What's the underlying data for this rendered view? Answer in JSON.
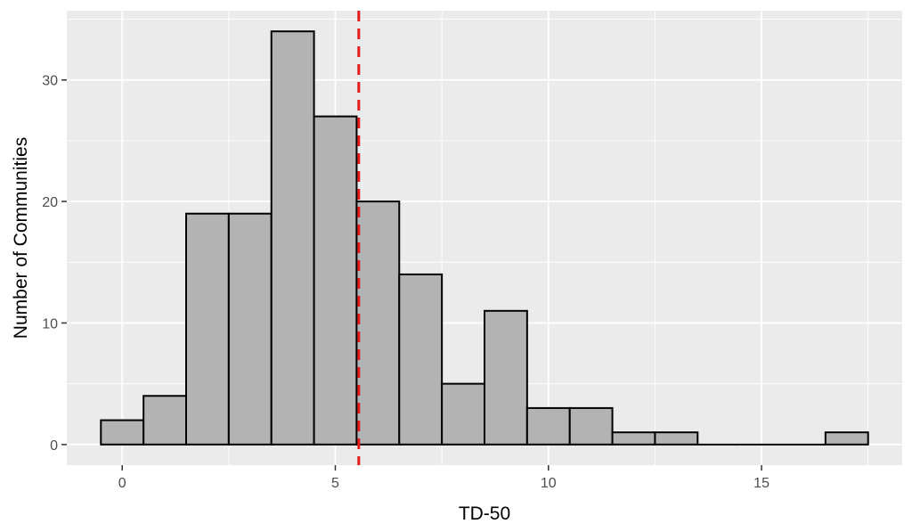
{
  "chart_data": {
    "type": "bar",
    "subtype": "histogram",
    "title": "",
    "xlabel": "TD-50",
    "ylabel": "Number of Communities",
    "bin_width": 1,
    "bins": [
      {
        "x": 0,
        "count": 2
      },
      {
        "x": 1,
        "count": 4
      },
      {
        "x": 2,
        "count": 19
      },
      {
        "x": 3,
        "count": 19
      },
      {
        "x": 4,
        "count": 34
      },
      {
        "x": 5,
        "count": 27
      },
      {
        "x": 6,
        "count": 20
      },
      {
        "x": 7,
        "count": 14
      },
      {
        "x": 8,
        "count": 5
      },
      {
        "x": 9,
        "count": 11
      },
      {
        "x": 10,
        "count": 3
      },
      {
        "x": 11,
        "count": 3
      },
      {
        "x": 12,
        "count": 1
      },
      {
        "x": 13,
        "count": 1
      },
      {
        "x": 14,
        "count": 0
      },
      {
        "x": 15,
        "count": 0
      },
      {
        "x": 16,
        "count": 0
      },
      {
        "x": 17,
        "count": 1
      }
    ],
    "xlim": [
      -1.3,
      18.3
    ],
    "ylim": [
      -1.7,
      35.7
    ],
    "x_ticks": [
      0,
      5,
      10,
      15
    ],
    "y_ticks": [
      0,
      10,
      20,
      30
    ],
    "reference_line": {
      "x": 5.55,
      "style": "dashed",
      "color": "#e41a1c"
    },
    "bar_fill": "#b3b3b3",
    "bar_stroke": "#000000",
    "panel_background": "#ebebeb",
    "grid": true
  }
}
